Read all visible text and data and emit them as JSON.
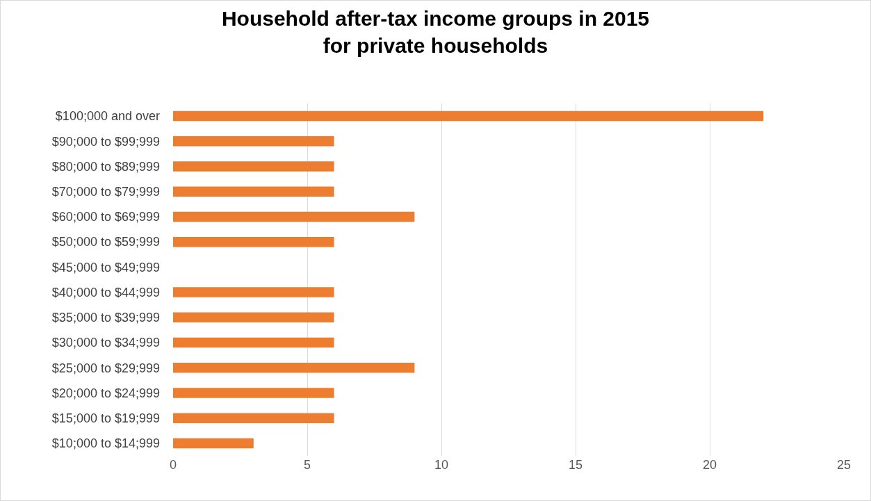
{
  "chart_data": {
    "type": "bar",
    "orientation": "horizontal",
    "title": "Household after-tax income groups in 2015\nfor private households",
    "categories": [
      "$100;000 and over",
      "$90;000 to $99;999",
      "$80;000 to $89;999",
      "$70;000 to $79;999",
      "$60;000 to $69;999",
      "$50;000 to $59;999",
      "$45;000 to $49;999",
      "$40;000 to $44;999",
      "$35;000 to $39;999",
      "$30;000 to $34;999",
      "$25;000 to $29;999",
      "$20;000 to $24;999",
      "$15;000 to $19;999",
      "$10;000 to $14;999"
    ],
    "values": [
      22,
      6,
      6,
      6,
      9,
      6,
      0,
      6,
      6,
      6,
      9,
      6,
      6,
      3
    ],
    "color": "#ed7d31",
    "xlim": [
      0,
      25
    ],
    "xticks": [
      0,
      5,
      10,
      15,
      20,
      25
    ],
    "grid": "x"
  }
}
